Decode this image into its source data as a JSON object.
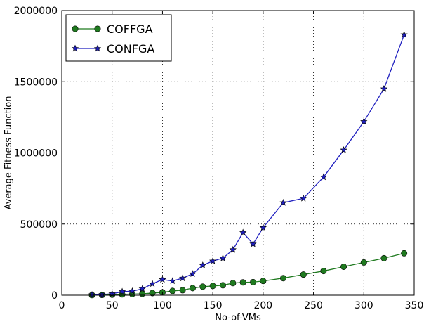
{
  "chart_data": {
    "type": "line",
    "xlabel": "No-of-VMs",
    "ylabel": "Average Fitness Function",
    "xlim": [
      0,
      350
    ],
    "ylim": [
      0,
      2000000
    ],
    "xticks": [
      "0",
      "50",
      "100",
      "150",
      "200",
      "250",
      "300",
      "350"
    ],
    "yticks": [
      "0",
      "500000",
      "1000000",
      "1500000",
      "2000000"
    ],
    "grid": true,
    "legend_position": "top-left",
    "series": [
      {
        "name": "COFFGA",
        "color": "#1f7a1f",
        "marker": "circle",
        "x": [
          30,
          40,
          50,
          60,
          70,
          80,
          90,
          100,
          110,
          120,
          130,
          140,
          150,
          160,
          170,
          180,
          190,
          200,
          220,
          240,
          260,
          280,
          300,
          320,
          340
        ],
        "y": [
          1000,
          2000,
          4000,
          6000,
          8000,
          10000,
          15000,
          20000,
          30000,
          35000,
          50000,
          60000,
          65000,
          70000,
          85000,
          90000,
          92000,
          100000,
          120000,
          145000,
          170000,
          200000,
          230000,
          260000,
          295000
        ]
      },
      {
        "name": "CONFGA",
        "color": "#1f1fbf",
        "marker": "star",
        "x": [
          30,
          40,
          50,
          60,
          70,
          80,
          90,
          100,
          110,
          120,
          130,
          140,
          150,
          160,
          170,
          180,
          190,
          200,
          220,
          240,
          260,
          280,
          300,
          320,
          340
        ],
        "y": [
          3000,
          5000,
          10000,
          25000,
          28000,
          45000,
          80000,
          110000,
          100000,
          120000,
          150000,
          210000,
          240000,
          260000,
          320000,
          440000,
          360000,
          475000,
          650000,
          680000,
          830000,
          1020000,
          1220000,
          1450000,
          1830000
        ]
      }
    ]
  }
}
